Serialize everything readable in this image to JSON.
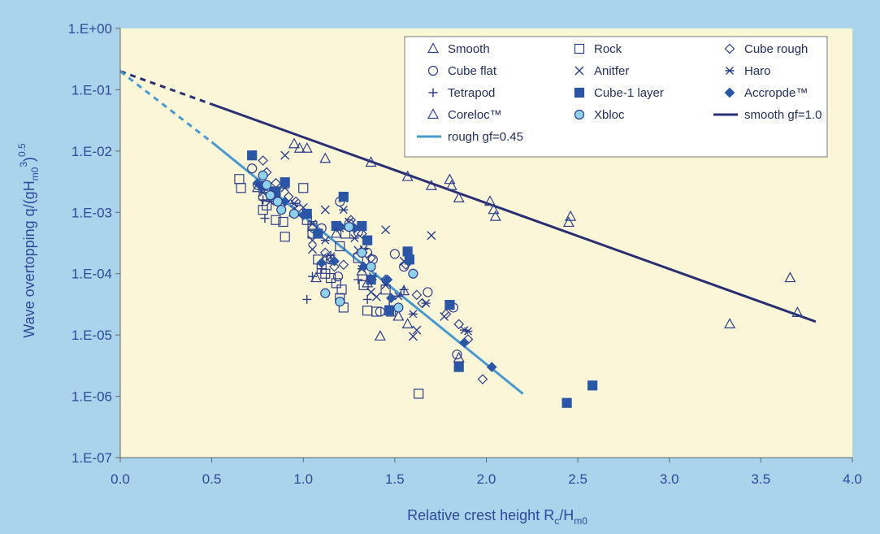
{
  "colors": {
    "page_bg": "#a9d4ec",
    "plot_bg": "#fbf6d7",
    "axis_text": "#2e4a9a",
    "marker_stroke": "#2c3f8c",
    "marker_fill_dark": "#2b56a6",
    "marker_fill_light": "#8fd0ea",
    "rough_line": "#4a9ad0",
    "smooth_line": "#2a2e72"
  },
  "chart_data": {
    "type": "scatter",
    "xlabel": "Relative crest height Rc/Hm0",
    "ylabel": "Wave overtopping q/(gHm0³)^0.5",
    "xlim": [
      0,
      4
    ],
    "ylim": [
      1e-07,
      1
    ],
    "y_scale": "log",
    "grid": false,
    "legend_position": "top-right",
    "x_ticks": [
      "0.0",
      "0.5",
      "1.0",
      "1.5",
      "2.0",
      "2.5",
      "3.0",
      "3.5",
      "4.0"
    ],
    "y_ticks": [
      {
        "value": 1,
        "label": "1.E+00"
      },
      {
        "value": 0.1,
        "label": "1.E-01"
      },
      {
        "value": 0.01,
        "label": "1.E-02"
      },
      {
        "value": 0.001,
        "label": "1.E-03"
      },
      {
        "value": 0.0001,
        "label": "1.E-04"
      },
      {
        "value": 1e-05,
        "label": "1.E-05"
      },
      {
        "value": 1e-06,
        "label": "1.E-06"
      },
      {
        "value": 1e-07,
        "label": "1.E-07"
      }
    ],
    "lines": [
      {
        "name": "smooth gf=1.0",
        "color": "#2a2e72",
        "x": [
          0.5,
          3.8
        ],
        "y": [
          0.058,
          1.65e-05
        ]
      },
      {
        "name": "rough gf=0.45",
        "color": "#4a9ad0",
        "x": [
          0.5,
          2.2
        ],
        "y": [
          0.014,
          1.1e-06
        ]
      }
    ],
    "extrapolations": [
      {
        "color": "#2a2e72",
        "x": [
          0,
          0.5
        ],
        "y": [
          0.2,
          0.058
        ]
      },
      {
        "color": "#4a9ad0",
        "x": [
          0,
          0.5
        ],
        "y": [
          0.2,
          0.014
        ]
      }
    ],
    "series": [
      {
        "name": "Smooth",
        "marker": "triangle",
        "fill": "none",
        "points": [
          [
            0.95,
            0.013
          ],
          [
            0.98,
            0.011
          ],
          [
            1.02,
            0.011
          ],
          [
            1.12,
            0.0075
          ],
          [
            1.37,
            0.0065
          ],
          [
            1.57,
            0.0038
          ],
          [
            1.7,
            0.0027
          ],
          [
            1.8,
            0.0034
          ],
          [
            1.81,
            0.0027
          ],
          [
            1.85,
            0.0017
          ],
          [
            2.02,
            0.0015
          ],
          [
            2.04,
            0.0011
          ],
          [
            2.05,
            0.00085
          ],
          [
            2.46,
            0.00085
          ],
          [
            2.45,
            0.00068
          ],
          [
            3.66,
            8.5e-05
          ],
          [
            3.7,
            2.3e-05
          ],
          [
            3.33,
            1.5e-05
          ],
          [
            1.42,
            9.5e-06
          ],
          [
            1.57,
            1.5e-05
          ],
          [
            1.85,
            4.2e-06
          ],
          [
            1.32,
            0.00011
          ],
          [
            1.07,
            8.5e-05
          ],
          [
            1.12,
            0.00017
          ],
          [
            1.55,
            5.2e-05
          ]
        ]
      },
      {
        "name": "Rock",
        "marker": "square",
        "fill": "none",
        "points": [
          [
            0.65,
            0.0035
          ],
          [
            0.66,
            0.0025
          ],
          [
            0.78,
            0.0011
          ],
          [
            0.8,
            0.0013
          ],
          [
            0.85,
            0.00075
          ],
          [
            0.89,
            0.0007
          ],
          [
            0.9,
            0.0004
          ],
          [
            1.0,
            0.0025
          ],
          [
            1.02,
            0.00075
          ],
          [
            1.05,
            0.00045
          ],
          [
            1.08,
            0.00017
          ],
          [
            1.1,
            0.00012
          ],
          [
            1.12,
            0.0001
          ],
          [
            1.15,
            8.5e-05
          ],
          [
            1.18,
            7e-05
          ],
          [
            1.2,
            4e-05
          ],
          [
            1.21,
            5.5e-05
          ],
          [
            1.22,
            2.8e-05
          ],
          [
            1.23,
            0.00045
          ],
          [
            1.3,
            0.00018
          ],
          [
            1.33,
            6.5e-05
          ],
          [
            1.35,
            2.5e-05
          ],
          [
            1.4,
            2.4e-05
          ],
          [
            1.45,
            5.5e-05
          ],
          [
            1.48,
            2.4e-05
          ],
          [
            1.63,
            1.1e-06
          ],
          [
            1.2,
            0.00028
          ],
          [
            1.05,
            0.0006
          ]
        ]
      },
      {
        "name": "Cube rough",
        "marker": "diamond",
        "fill": "none",
        "points": [
          [
            0.78,
            0.007
          ],
          [
            0.8,
            0.0045
          ],
          [
            0.85,
            0.003
          ],
          [
            0.92,
            0.0018
          ],
          [
            0.96,
            0.0015
          ],
          [
            1.05,
            0.00055
          ],
          [
            1.12,
            0.00022
          ],
          [
            1.17,
            0.00013
          ],
          [
            1.22,
            0.00014
          ],
          [
            1.26,
            0.00075
          ],
          [
            1.32,
            0.00045
          ],
          [
            1.37,
            0.00018
          ],
          [
            1.45,
            8e-05
          ],
          [
            1.56,
            0.00014
          ],
          [
            1.62,
            4.5e-05
          ],
          [
            1.65,
            3.3e-05
          ],
          [
            1.78,
            2.2e-05
          ],
          [
            1.9,
            8.5e-06
          ],
          [
            1.98,
            1.9e-06
          ],
          [
            1.85,
            1.5e-05
          ]
        ]
      },
      {
        "name": "Cube flat",
        "marker": "circle",
        "fill": "none",
        "points": [
          [
            0.72,
            0.0052
          ],
          [
            0.75,
            0.0028
          ],
          [
            0.78,
            0.0018
          ],
          [
            0.85,
            0.0022
          ],
          [
            0.98,
            0.0011
          ],
          [
            1.1,
            0.00055
          ],
          [
            1.15,
            0.00017
          ],
          [
            1.19,
            9e-05
          ],
          [
            1.25,
            0.00065
          ],
          [
            1.3,
            0.00048
          ],
          [
            1.35,
            0.00022
          ],
          [
            1.38,
            0.00017
          ],
          [
            1.42,
            2.4e-05
          ],
          [
            1.5,
            0.00021
          ],
          [
            1.55,
            0.00013
          ],
          [
            1.68,
            5e-05
          ],
          [
            1.82,
            2.8e-05
          ],
          [
            1.84,
            4.8e-06
          ],
          [
            1.2,
            0.0015
          ]
        ]
      },
      {
        "name": "Anitfer",
        "marker": "x",
        "fill": "none",
        "points": [
          [
            0.9,
            0.0085
          ],
          [
            1.0,
            0.0012
          ],
          [
            1.05,
            0.00035
          ],
          [
            1.12,
            0.0011
          ],
          [
            1.15,
            0.00019
          ],
          [
            1.25,
            0.0007
          ],
          [
            1.3,
            0.00024
          ],
          [
            1.37,
            5e-05
          ],
          [
            1.4,
            4.2e-05
          ],
          [
            1.45,
            0.00052
          ],
          [
            1.55,
            0.00016
          ],
          [
            1.6,
            9.5e-06
          ],
          [
            1.62,
            1.2e-05
          ],
          [
            1.7,
            0.00042
          ],
          [
            1.77,
            2e-05
          ],
          [
            1.22,
            0.0017
          ],
          [
            1.05,
            0.00025
          ]
        ]
      },
      {
        "name": "Haro",
        "marker": "asterisk",
        "fill": "none",
        "points": [
          [
            0.78,
            0.0021
          ],
          [
            0.82,
            0.0015
          ],
          [
            0.9,
            0.0025
          ],
          [
            0.95,
            0.0014
          ],
          [
            1.05,
            0.00065
          ],
          [
            1.12,
            0.00035
          ],
          [
            1.2,
            0.00055
          ],
          [
            1.28,
            0.00038
          ],
          [
            1.32,
            0.00012
          ],
          [
            1.38,
            9e-05
          ],
          [
            1.45,
            6.5e-05
          ],
          [
            1.52,
            4.3e-05
          ],
          [
            1.6,
            2.2e-05
          ],
          [
            1.67,
            3.3e-05
          ],
          [
            1.88,
            1.2e-05
          ],
          [
            1.9,
            1.15e-05
          ],
          [
            1.22,
            0.0011
          ],
          [
            1.33,
            0.00025
          ]
        ]
      },
      {
        "name": "Tetrapod",
        "marker": "plus",
        "fill": "none",
        "points": [
          [
            0.78,
            0.0016
          ],
          [
            0.79,
            0.0008
          ],
          [
            0.82,
            0.0025
          ],
          [
            0.85,
            0.0018
          ],
          [
            1.02,
            3.8e-05
          ],
          [
            1.05,
            9e-05
          ],
          [
            1.1,
            0.00012
          ],
          [
            1.15,
            0.0002
          ],
          [
            1.3,
            8e-05
          ],
          [
            1.35,
            3.8e-05
          ],
          [
            1.47,
            3e-05
          ],
          [
            1.55,
            5.5e-05
          ]
        ]
      },
      {
        "name": "Cube-1 layer",
        "marker": "square",
        "fill": "dark",
        "points": [
          [
            0.72,
            0.0085
          ],
          [
            0.78,
            0.0027
          ],
          [
            0.85,
            0.0022
          ],
          [
            0.9,
            0.0031
          ],
          [
            1.02,
            0.00095
          ],
          [
            1.08,
            0.00045
          ],
          [
            1.18,
            0.0006
          ],
          [
            1.22,
            0.0018
          ],
          [
            1.32,
            0.0006
          ],
          [
            1.35,
            0.00035
          ],
          [
            1.37,
            8e-05
          ],
          [
            1.47,
            2.5e-05
          ],
          [
            1.57,
            0.00023
          ],
          [
            1.58,
            0.00017
          ],
          [
            1.8,
            3.1e-05
          ],
          [
            1.85,
            3e-06
          ],
          [
            2.44,
            7.8e-07
          ],
          [
            2.58,
            1.5e-06
          ]
        ]
      },
      {
        "name": "Accropde™",
        "marker": "diamond",
        "fill": "dark",
        "points": [
          [
            0.75,
            0.003
          ],
          [
            0.82,
            0.002
          ],
          [
            0.9,
            0.0015
          ],
          [
            1.0,
            0.0009
          ],
          [
            1.1,
            0.00015
          ],
          [
            1.2,
            0.0006
          ],
          [
            1.28,
            0.00055
          ],
          [
            1.33,
            0.00013
          ],
          [
            1.46,
            8e-05
          ],
          [
            1.48,
            4e-05
          ],
          [
            1.58,
            0.00016
          ],
          [
            1.88,
            7.5e-06
          ],
          [
            2.03,
            3e-06
          ],
          [
            1.17,
            0.00016
          ]
        ]
      },
      {
        "name": "Coreloc™",
        "marker": "triangle",
        "fill": "none",
        "points": [
          [
            0.75,
            0.0025
          ],
          [
            0.95,
            0.001
          ],
          [
            1.18,
            0.00045
          ],
          [
            1.35,
            7e-05
          ],
          [
            1.52,
            2e-05
          ]
        ]
      },
      {
        "name": "Xbloc",
        "marker": "circle",
        "fill": "light",
        "points": [
          [
            0.78,
            0.004
          ],
          [
            0.8,
            0.0028
          ],
          [
            0.82,
            0.0019
          ],
          [
            0.86,
            0.0015
          ],
          [
            0.88,
            0.0011
          ],
          [
            0.95,
            0.00095
          ],
          [
            1.12,
            4.8e-05
          ],
          [
            1.2,
            3.5e-05
          ],
          [
            1.25,
            0.00058
          ],
          [
            1.32,
            0.00022
          ],
          [
            1.37,
            0.00013
          ],
          [
            1.6,
            0.0001
          ],
          [
            1.52,
            2.8e-05
          ]
        ]
      }
    ],
    "legend": [
      {
        "label": "Smooth",
        "marker": "triangle",
        "fill": "none"
      },
      {
        "label": "Rock",
        "marker": "square",
        "fill": "none"
      },
      {
        "label": "Cube rough",
        "marker": "diamond",
        "fill": "none"
      },
      {
        "label": "Cube flat",
        "marker": "circle",
        "fill": "none"
      },
      {
        "label": "Anitfer",
        "marker": "x",
        "fill": "none"
      },
      {
        "label": "Haro",
        "marker": "asterisk",
        "fill": "none"
      },
      {
        "label": "Tetrapod",
        "marker": "plus",
        "fill": "none"
      },
      {
        "label": "Cube-1 layer",
        "marker": "square",
        "fill": "dark"
      },
      {
        "label": "Accropde™",
        "marker": "diamond",
        "fill": "dark"
      },
      {
        "label": "Coreloc™",
        "marker": "triangle",
        "fill": "none"
      },
      {
        "label": "Xbloc",
        "marker": "circle",
        "fill": "light"
      },
      {
        "label": "smooth gf=1.0",
        "marker": "line",
        "color": "#2a2e72"
      },
      {
        "label": "rough gf=0.45",
        "marker": "line",
        "color": "#4a9ad0"
      }
    ]
  }
}
